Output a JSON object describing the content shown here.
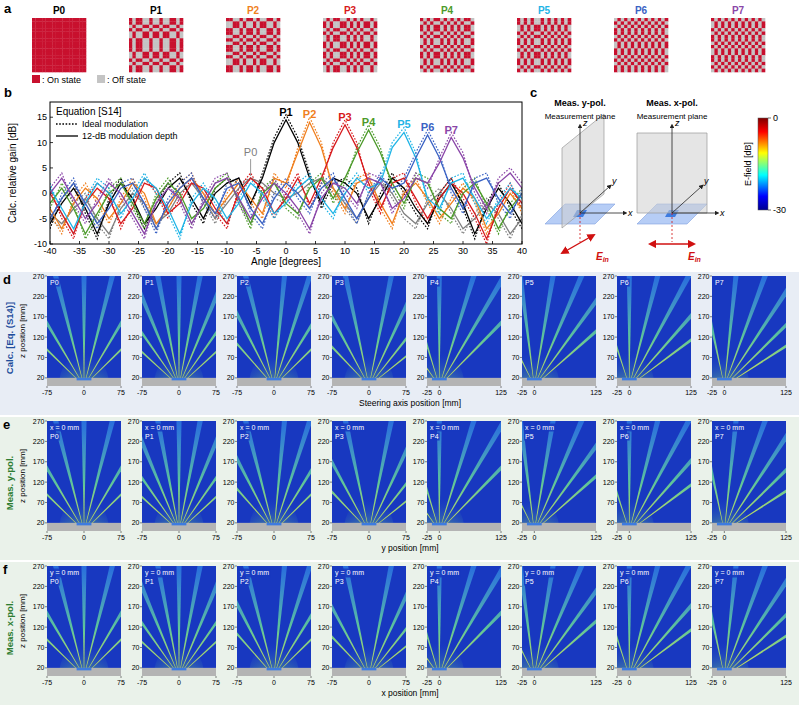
{
  "chart_data": {
    "type": "line",
    "letter": "b",
    "title": "Equation [S14]",
    "x_title": "Angle [degrees]",
    "y_title": "Calc. relative gain [dB]",
    "x": [
      -40,
      -38,
      -36,
      -34,
      -32,
      -30,
      -28,
      -26,
      -24,
      -22,
      -20,
      -18,
      -16,
      -14,
      -12,
      -10,
      -8,
      -6,
      -4,
      -2,
      0,
      2,
      4,
      6,
      8,
      10,
      12,
      14,
      16,
      18,
      20,
      22,
      24,
      26,
      28,
      30,
      32,
      34,
      36,
      38,
      40
    ],
    "xlim": [
      -40,
      40
    ],
    "xticks": [
      -40,
      -35,
      -30,
      -25,
      -20,
      -15,
      -10,
      -5,
      0,
      5,
      10,
      15,
      20,
      25,
      30,
      35,
      40
    ],
    "ylim": [
      -10,
      18
    ],
    "yticks": [
      -10,
      -5,
      0,
      5,
      10,
      15
    ],
    "legend": "top-left",
    "legend_items": [
      {
        "label": "Ideal modulation",
        "line_style": "dotted"
      },
      {
        "label": "12-dB modulation depth",
        "line_style": "solid"
      }
    ],
    "series": [
      {
        "name": "P0",
        "color": "#808080",
        "values": [
          -4,
          -6,
          -3,
          -1,
          -5,
          -8,
          -3,
          0,
          -2,
          -6,
          -4,
          0,
          2,
          -1,
          -5,
          -2,
          1,
          3,
          2,
          0,
          -1,
          0,
          2,
          3,
          1,
          -2,
          -5,
          -1,
          2,
          0,
          -4,
          -6,
          -2,
          0,
          -3,
          -7,
          -5,
          -2,
          -4,
          -8,
          -5
        ],
        "ideal_values": [
          -5,
          -7,
          -2,
          0,
          -6,
          -9,
          -2,
          1,
          -3,
          -7,
          -3,
          1,
          3,
          -2,
          -6,
          -1,
          2,
          3,
          1,
          -1,
          -2,
          1,
          3,
          2,
          0,
          -3,
          -6,
          0,
          3,
          -1,
          -5,
          -7,
          -1,
          1,
          -4,
          -8,
          -4,
          -1,
          -5,
          -9,
          -4
        ]
      },
      {
        "name": "P1",
        "color": "#000000",
        "values": [
          -6,
          -2,
          1,
          -3,
          -8,
          -2,
          2,
          -1,
          -6,
          -3,
          1,
          3,
          -1,
          -5,
          0,
          2,
          3,
          -2,
          3,
          10,
          14.5,
          10,
          3,
          -2,
          3,
          2,
          0,
          -5,
          -1,
          3,
          1,
          -3,
          -6,
          -1,
          2,
          -2,
          -8,
          -3,
          1,
          -2,
          -6
        ],
        "ideal_values": [
          -7,
          -1,
          2,
          -4,
          -9,
          -1,
          3,
          -2,
          -7,
          -2,
          2,
          4,
          -2,
          -6,
          1,
          3,
          2,
          -3,
          4,
          11,
          15.5,
          11,
          4,
          -3,
          2,
          3,
          1,
          -6,
          0,
          4,
          0,
          -4,
          -7,
          0,
          3,
          -3,
          -9,
          -2,
          2,
          -3,
          -7
        ]
      },
      {
        "name": "P2",
        "color": "#f07f1e",
        "values": [
          -3,
          -7,
          -2,
          1,
          -1,
          -5,
          -2,
          2,
          0,
          -6,
          -3,
          1,
          3,
          0,
          -4,
          -1,
          2,
          -1,
          -4,
          3,
          2,
          8,
          14,
          9,
          1,
          -3,
          2,
          3,
          -2,
          -6,
          0,
          2,
          -1,
          -5,
          -2,
          1,
          -1,
          -7,
          -4,
          0,
          -3
        ],
        "ideal_values": [
          -4,
          -8,
          -1,
          2,
          -2,
          -6,
          -1,
          3,
          -1,
          -7,
          -2,
          2,
          4,
          -1,
          -5,
          0,
          3,
          -2,
          -5,
          4,
          1,
          9,
          15,
          10,
          0,
          -4,
          3,
          4,
          -3,
          -7,
          1,
          3,
          -2,
          -6,
          -1,
          2,
          -2,
          -8,
          -3,
          1,
          -4
        ]
      },
      {
        "name": "P3",
        "color": "#d7191c",
        "values": [
          0,
          -4,
          -8,
          -2,
          1,
          -1,
          -6,
          -3,
          2,
          1,
          -4,
          -2,
          2,
          1,
          -3,
          -6,
          0,
          3,
          1,
          -4,
          -1,
          3,
          -2,
          3,
          9,
          13.5,
          9,
          2,
          -3,
          2,
          3,
          -1,
          -5,
          -1,
          2,
          0,
          -4,
          -9,
          -3,
          1,
          -2
        ],
        "ideal_values": [
          1,
          -5,
          -9,
          -1,
          2,
          0,
          -7,
          -2,
          3,
          0,
          -5,
          -1,
          3,
          0,
          -4,
          -7,
          1,
          4,
          0,
          -5,
          0,
          4,
          -3,
          2,
          10,
          14.5,
          10,
          1,
          -4,
          3,
          4,
          -2,
          -6,
          0,
          3,
          -1,
          -5,
          -10,
          -2,
          2,
          -3
        ]
      },
      {
        "name": "P4",
        "color": "#4c9a2a",
        "values": [
          -2,
          1,
          -3,
          -8,
          -4,
          0,
          2,
          -2,
          -6,
          -1,
          2,
          0,
          -5,
          -3,
          1,
          3,
          -1,
          -6,
          0,
          2,
          -2,
          -4,
          1,
          3,
          -1,
          3,
          8,
          12.5,
          8,
          2,
          -2,
          3,
          2,
          -3,
          -5,
          0,
          2,
          -2,
          -7,
          -3,
          0
        ],
        "ideal_values": [
          -3,
          2,
          -2,
          -9,
          -5,
          1,
          3,
          -3,
          -7,
          0,
          3,
          -1,
          -6,
          -2,
          2,
          4,
          -2,
          -7,
          1,
          3,
          -3,
          -5,
          2,
          4,
          -2,
          2,
          9,
          13.5,
          9,
          1,
          -3,
          4,
          3,
          -4,
          -6,
          1,
          3,
          -3,
          -8,
          -2,
          1
        ]
      },
      {
        "name": "P5",
        "color": "#1fb4e6",
        "values": [
          1,
          -3,
          -7,
          -2,
          2,
          0,
          -4,
          -1,
          3,
          1,
          -3,
          -8,
          -2,
          1,
          -1,
          -5,
          -2,
          2,
          0,
          -4,
          -2,
          1,
          3,
          -1,
          -4,
          0,
          3,
          1,
          2,
          9,
          12,
          7,
          -1,
          -3,
          2,
          3,
          -1,
          -5,
          -2,
          1,
          -1
        ],
        "ideal_values": [
          2,
          -4,
          -8,
          -1,
          3,
          1,
          -5,
          0,
          4,
          0,
          -4,
          -9,
          -1,
          2,
          -2,
          -6,
          -1,
          3,
          -1,
          -5,
          -1,
          2,
          4,
          -2,
          -5,
          1,
          4,
          0,
          3,
          10,
          13,
          8,
          -2,
          -4,
          3,
          4,
          -2,
          -6,
          -1,
          2,
          -2
        ]
      },
      {
        "name": "P6",
        "color": "#3a62c4",
        "values": [
          -5,
          -1,
          2,
          -2,
          -6,
          -3,
          1,
          2,
          -2,
          -7,
          -2,
          1,
          3,
          -1,
          -4,
          1,
          2,
          -3,
          -6,
          -1,
          2,
          0,
          -3,
          1,
          3,
          -1,
          -5,
          -1,
          3,
          1,
          2,
          7,
          11.5,
          7,
          1,
          -3,
          2,
          3,
          -1,
          -4,
          0
        ],
        "ideal_values": [
          -6,
          0,
          3,
          -3,
          -7,
          -2,
          2,
          3,
          -3,
          -8,
          -1,
          2,
          4,
          -2,
          -5,
          2,
          3,
          -4,
          -7,
          0,
          3,
          -1,
          -4,
          2,
          4,
          -2,
          -6,
          0,
          4,
          0,
          3,
          8,
          12.5,
          8,
          0,
          -4,
          3,
          4,
          -2,
          -5,
          1
        ]
      },
      {
        "name": "P7",
        "color": "#8a46a8",
        "values": [
          0,
          3,
          -1,
          -5,
          -2,
          2,
          0,
          -4,
          -8,
          -2,
          1,
          -1,
          -6,
          -2,
          2,
          3,
          -1,
          -5,
          -1,
          2,
          0,
          -3,
          -7,
          -1,
          2,
          1,
          -2,
          3,
          2,
          -3,
          -1,
          3,
          2,
          6,
          11,
          7,
          1,
          -3,
          2,
          4,
          1
        ],
        "ideal_values": [
          1,
          4,
          -2,
          -6,
          -1,
          3,
          -1,
          -5,
          -9,
          -1,
          2,
          -2,
          -7,
          -1,
          3,
          4,
          -2,
          -6,
          0,
          3,
          -1,
          -4,
          -8,
          0,
          3,
          0,
          -3,
          4,
          3,
          -4,
          0,
          4,
          1,
          7,
          12,
          8,
          0,
          -4,
          3,
          5,
          2
        ]
      }
    ]
  },
  "coding_patterns": {
    "letter": "a",
    "legend": [
      {
        "label": ": On state",
        "color": "#c8102e"
      },
      {
        "label": ": Off state",
        "color": "#c4c4c4"
      }
    ],
    "patterns": [
      {
        "name": "P0",
        "color": "#000000",
        "rows": [
          1,
          1,
          1,
          1,
          1,
          1,
          1,
          1,
          1,
          1,
          1,
          1,
          1,
          1,
          1,
          1
        ],
        "cols": [
          1,
          1,
          1,
          1,
          1,
          1,
          1,
          1,
          1,
          1,
          1,
          1,
          1,
          1,
          1,
          1
        ]
      },
      {
        "name": "P1",
        "color": "#000000",
        "rows": [
          1,
          1,
          0,
          1,
          0,
          0,
          1,
          1,
          1,
          1,
          0,
          0,
          1,
          0,
          1,
          1
        ],
        "cols": [
          1,
          0,
          1,
          1,
          0,
          0,
          1,
          0,
          0,
          1,
          0,
          0,
          1,
          1,
          0,
          1
        ]
      },
      {
        "name": "P2",
        "color": "#f07f1e",
        "rows": [
          1,
          0,
          0,
          1,
          1,
          0,
          1,
          0,
          1,
          1,
          0,
          1,
          0,
          0,
          1,
          1
        ],
        "cols": [
          1,
          1,
          0,
          0,
          1,
          0,
          1,
          1,
          0,
          1,
          0,
          0,
          1,
          1,
          0,
          1
        ]
      },
      {
        "name": "P3",
        "color": "#d7191c",
        "rows": [
          0,
          1,
          1,
          0,
          1,
          0,
          0,
          1,
          1,
          0,
          1,
          1,
          0,
          1,
          0,
          0
        ],
        "cols": [
          1,
          0,
          1,
          0,
          0,
          1,
          1,
          0,
          1,
          0,
          1,
          0,
          1,
          1,
          0,
          1
        ]
      },
      {
        "name": "P4",
        "color": "#4c9a2a",
        "rows": [
          1,
          0,
          1,
          1,
          0,
          1,
          0,
          0,
          1,
          0,
          1,
          1,
          0,
          0,
          1,
          0
        ],
        "cols": [
          1,
          0,
          1,
          0,
          1,
          1,
          0,
          1,
          0,
          1,
          0,
          1,
          0,
          1,
          1,
          0
        ]
      },
      {
        "name": "P5",
        "color": "#1fb4e6",
        "rows": [
          1,
          1,
          0,
          0,
          1,
          0,
          1,
          1,
          0,
          1,
          0,
          0,
          1,
          1,
          0,
          1
        ],
        "cols": [
          1,
          0,
          1,
          0,
          1,
          0,
          0,
          1,
          0,
          1,
          0,
          1,
          0,
          1,
          0,
          1
        ]
      },
      {
        "name": "P6",
        "color": "#3a62c4",
        "rows": [
          0,
          1,
          0,
          1,
          1,
          0,
          1,
          0,
          0,
          1,
          1,
          0,
          1,
          0,
          1,
          1
        ],
        "cols": [
          1,
          0,
          1,
          0,
          1,
          0,
          1,
          0,
          1,
          0,
          1,
          0,
          1,
          0,
          1,
          0
        ]
      },
      {
        "name": "P7",
        "color": "#8a46a8",
        "rows": [
          1,
          0,
          0,
          1,
          0,
          1,
          1,
          0,
          1,
          0,
          0,
          1,
          1,
          0,
          1,
          0
        ],
        "cols": [
          1,
          0,
          1,
          0,
          1,
          0,
          1,
          0,
          1,
          0,
          1,
          0,
          1,
          0,
          1,
          0
        ]
      }
    ]
  },
  "schematic": {
    "letter": "c",
    "views": [
      {
        "title": "Meas. y-pol.",
        "plane_label": "Measurement plane",
        "polarization": "y"
      },
      {
        "title": "Meas. x-pol.",
        "plane_label": "Measurement plane",
        "polarization": "x"
      }
    ],
    "axis_labels": [
      "x",
      "y",
      "z"
    ],
    "input_label": "E",
    "input_subscript": "in",
    "colorbar": {
      "title": "E-field [dB]",
      "range": [
        -30,
        0
      ],
      "ticks": [
        0,
        -30
      ]
    }
  },
  "field_maps": {
    "zlim": [
      0,
      270
    ],
    "zticks": [
      20,
      70,
      120,
      170,
      220,
      270
    ],
    "z_title": "z position [mm]",
    "surface_top": 20,
    "metasurface": [
      -15,
      15
    ],
    "rows": [
      {
        "letter": "d",
        "label": "Calc. [Eq. (S14)]",
        "x_title": "Steering axis position [mm]",
        "color": "#1f4e9c"
      },
      {
        "letter": "e",
        "label": "Meas. y-pol.",
        "x_title": "y position [mm]",
        "slice_label": "x = 0 mm",
        "color": "#2e7d32"
      },
      {
        "letter": "f",
        "label": "Meas. x-pol.",
        "x_title": "x position [mm]",
        "slice_label": "y = 0 mm",
        "color": "#2e7d32"
      }
    ],
    "patterns": [
      {
        "name": "P0",
        "xlim": [
          -75,
          75
        ],
        "xticks": [
          -75,
          0,
          75
        ],
        "beams": [
          -40,
          -26,
          -12,
          0,
          12,
          26,
          40
        ]
      },
      {
        "name": "P1",
        "xlim": [
          -75,
          75
        ],
        "xticks": [
          -75,
          0,
          75
        ],
        "beams": [
          -42,
          -30,
          -19,
          -9,
          0,
          9,
          19,
          30,
          42
        ]
      },
      {
        "name": "P2",
        "xlim": [
          -75,
          75
        ],
        "xticks": [
          -75,
          0,
          75
        ],
        "beams": [
          -36,
          -23,
          -12,
          4.5,
          15,
          27,
          40
        ]
      },
      {
        "name": "P3",
        "xlim": [
          -75,
          75
        ],
        "xticks": [
          -75,
          0,
          75
        ],
        "beams": [
          -38,
          -24,
          -10,
          9.5,
          21,
          33,
          46
        ]
      },
      {
        "name": "P4",
        "xlim": [
          -25,
          125
        ],
        "xticks": [
          -25,
          0,
          125
        ],
        "beams": [
          -30,
          -14,
          0,
          14.5,
          26,
          39
        ]
      },
      {
        "name": "P5",
        "xlim": [
          -25,
          125
        ],
        "xticks": [
          -25,
          0,
          125
        ],
        "beams": [
          -22,
          -6,
          8,
          19.5,
          31,
          43
        ]
      },
      {
        "name": "P6",
        "xlim": [
          -25,
          125
        ],
        "xticks": [
          -25,
          0,
          125
        ],
        "beams": [
          -15,
          0,
          12,
          24,
          36,
          48
        ]
      },
      {
        "name": "P7",
        "xlim": [
          -25,
          125
        ],
        "xticks": [
          -25,
          0,
          125
        ],
        "beams": [
          -10,
          5,
          17,
          28.5,
          40,
          52
        ]
      }
    ]
  }
}
